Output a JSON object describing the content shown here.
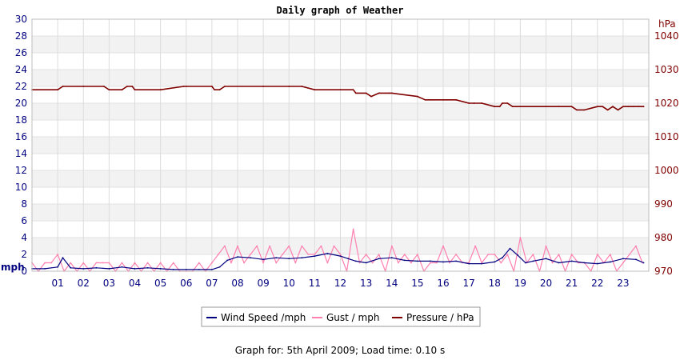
{
  "footer": {
    "note": "Graph for: 5th April 2009; Load time: 0.10 s"
  },
  "chart_data": {
    "type": "line",
    "title": "Daily graph of Weather",
    "left_axis": {
      "label": "mph",
      "range": [
        0,
        30
      ],
      "ticks": [
        0,
        2,
        4,
        6,
        8,
        10,
        12,
        14,
        16,
        18,
        20,
        22,
        24,
        26,
        28,
        30
      ],
      "color": "#000080"
    },
    "right_axis": {
      "label": "hPa",
      "range": [
        970,
        1045
      ],
      "ticks": [
        970,
        980,
        990,
        1000,
        1010,
        1020,
        1030,
        1040
      ],
      "color": "#800000"
    },
    "x_axis": {
      "range": [
        0,
        24
      ],
      "ticks": [
        "01",
        "02",
        "03",
        "04",
        "05",
        "06",
        "07",
        "08",
        "09",
        "10",
        "11",
        "12",
        "13",
        "14",
        "15",
        "16",
        "17",
        "18",
        "19",
        "20",
        "21",
        "22",
        "23"
      ]
    },
    "grid": true,
    "legend_position": "bottom",
    "series": [
      {
        "name": "Wind Speed /mph",
        "axis": "left",
        "color": "#000080",
        "x": [
          0,
          0.5,
          1,
          1.2,
          1.5,
          2,
          2.5,
          3,
          3.5,
          4,
          4.5,
          5,
          5.5,
          6,
          6.5,
          7,
          7.3,
          7.6,
          8,
          8.5,
          9,
          9.5,
          10,
          10.5,
          11,
          11.5,
          12,
          12.3,
          12.6,
          13,
          13.5,
          14,
          14.5,
          15,
          15.5,
          16,
          16.5,
          17,
          17.5,
          18,
          18.3,
          18.6,
          18.9,
          19.2,
          19.5,
          20,
          20.5,
          21,
          21.5,
          22,
          22.5,
          23,
          23.5,
          23.8
        ],
        "y": [
          0.3,
          0.3,
          0.5,
          1.6,
          0.4,
          0.3,
          0.4,
          0.3,
          0.5,
          0.3,
          0.4,
          0.3,
          0.2,
          0.2,
          0.2,
          0.2,
          0.5,
          1.3,
          1.7,
          1.6,
          1.4,
          1.6,
          1.5,
          1.6,
          1.8,
          2.1,
          1.8,
          1.5,
          1.2,
          1.0,
          1.5,
          1.6,
          1.3,
          1.2,
          1.2,
          1.1,
          1.2,
          0.9,
          0.9,
          1.1,
          1.6,
          2.7,
          1.9,
          1.0,
          1.2,
          1.5,
          1.0,
          1.2,
          1.0,
          0.9,
          1.1,
          1.5,
          1.4,
          1.0
        ]
      },
      {
        "name": "Gust / mph",
        "axis": "left",
        "color": "#ff80b0",
        "x": [
          0,
          0.25,
          0.5,
          0.75,
          1,
          1.25,
          1.5,
          1.75,
          2,
          2.25,
          2.5,
          2.75,
          3,
          3.25,
          3.5,
          3.75,
          4,
          4.25,
          4.5,
          4.75,
          5,
          5.25,
          5.5,
          5.75,
          6,
          6.25,
          6.5,
          6.75,
          7,
          7.25,
          7.5,
          7.75,
          8,
          8.25,
          8.5,
          8.75,
          9,
          9.25,
          9.5,
          9.75,
          10,
          10.25,
          10.5,
          10.75,
          11,
          11.25,
          11.5,
          11.75,
          12,
          12.25,
          12.5,
          12.75,
          13,
          13.25,
          13.5,
          13.75,
          14,
          14.25,
          14.5,
          14.75,
          15,
          15.25,
          15.5,
          15.75,
          16,
          16.25,
          16.5,
          16.75,
          17,
          17.25,
          17.5,
          17.75,
          18,
          18.25,
          18.5,
          18.75,
          19,
          19.25,
          19.5,
          19.75,
          20,
          20.25,
          20.5,
          20.75,
          21,
          21.25,
          21.5,
          21.75,
          22,
          22.25,
          22.5,
          22.75,
          23,
          23.25,
          23.5,
          23.75
        ],
        "y": [
          1,
          0,
          1,
          1,
          2,
          0,
          1,
          0,
          1,
          0,
          1,
          1,
          1,
          0,
          1,
          0,
          1,
          0,
          1,
          0,
          1,
          0,
          1,
          0,
          0,
          0,
          1,
          0,
          1,
          2,
          3,
          1,
          3,
          1,
          2,
          3,
          1,
          3,
          1,
          2,
          3,
          1,
          3,
          2,
          2,
          3,
          1,
          3,
          2,
          0,
          5,
          1,
          2,
          1,
          2,
          0,
          3,
          1,
          2,
          1,
          2,
          0,
          1,
          1,
          3,
          1,
          2,
          1,
          1,
          3,
          1,
          2,
          2,
          1,
          2,
          0,
          4,
          1,
          2,
          0,
          3,
          1,
          2,
          0,
          2,
          1,
          1,
          0,
          2,
          1,
          2,
          0,
          1,
          2,
          3,
          1
        ]
      },
      {
        "name": "Pressure / hPa",
        "axis": "right",
        "color": "#800000",
        "x": [
          0,
          1,
          1.2,
          2,
          2.8,
          3,
          3.5,
          3.7,
          3.9,
          4,
          5,
          5.9,
          6,
          7,
          7.1,
          7.3,
          7.5,
          9,
          10,
          10.5,
          11,
          12,
          12.5,
          12.6,
          13,
          13.2,
          13.5,
          13.9,
          14,
          15,
          15.3,
          15.5,
          16,
          16.5,
          17,
          17.2,
          17.5,
          18,
          18.2,
          18.3,
          18.5,
          18.7,
          19,
          20,
          20.5,
          21,
          21.2,
          21.5,
          22,
          22.2,
          22.4,
          22.6,
          22.8,
          23,
          23.2,
          23.4,
          23.6,
          23.8
        ],
        "y": [
          1024,
          1024,
          1025,
          1025,
          1025,
          1024,
          1024,
          1025,
          1025,
          1024,
          1024,
          1025,
          1025,
          1025,
          1024,
          1024,
          1025,
          1025,
          1025,
          1025,
          1024,
          1024,
          1024,
          1023,
          1023,
          1022,
          1023,
          1023,
          1023,
          1022,
          1021,
          1021,
          1021,
          1021,
          1020,
          1020,
          1020,
          1019,
          1019,
          1020,
          1020,
          1019,
          1019,
          1019,
          1019,
          1019,
          1018,
          1018,
          1019,
          1019,
          1018,
          1019,
          1018,
          1019,
          1019,
          1019,
          1019,
          1019
        ]
      }
    ]
  }
}
